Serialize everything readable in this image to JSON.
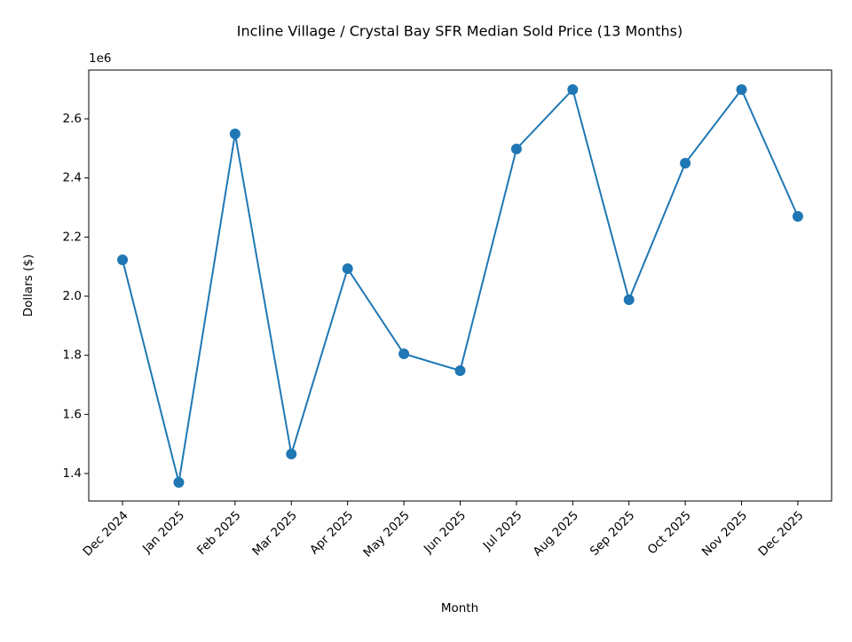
{
  "chart_data": {
    "type": "line",
    "title": "Incline Village / Crystal Bay SFR Median Sold Price (13 Months)",
    "x_label": "Month",
    "y_label": "Dollars ($)",
    "y_offset_label": "1e6",
    "categories": [
      "Dec 2024",
      "Jan 2025",
      "Feb 2025",
      "Mar 2025",
      "Apr 2025",
      "May 2025",
      "Jun 2025",
      "Jul 2025",
      "Aug 2025",
      "Sep 2025",
      "Oct 2025",
      "Nov 2025",
      "Dec 2025"
    ],
    "series": [
      {
        "name": "Median Sold Price",
        "color": "#1f77b4",
        "values": [
          2123000,
          1370000,
          2549000,
          1466000,
          2093000,
          1805000,
          1748000,
          2498000,
          2699000,
          1988000,
          2450000,
          2699000,
          2270000
        ]
      }
    ],
    "ylim": [
      1307000,
      2765000
    ],
    "yticks": [
      {
        "value": 1400000,
        "label": "1.4"
      },
      {
        "value": 1600000,
        "label": "1.6"
      },
      {
        "value": 1800000,
        "label": "1.8"
      },
      {
        "value": 2000000,
        "label": "2.0"
      },
      {
        "value": 2200000,
        "label": "2.2"
      },
      {
        "value": 2400000,
        "label": "2.4"
      },
      {
        "value": 2600000,
        "label": "2.6"
      }
    ],
    "grid": false
  }
}
